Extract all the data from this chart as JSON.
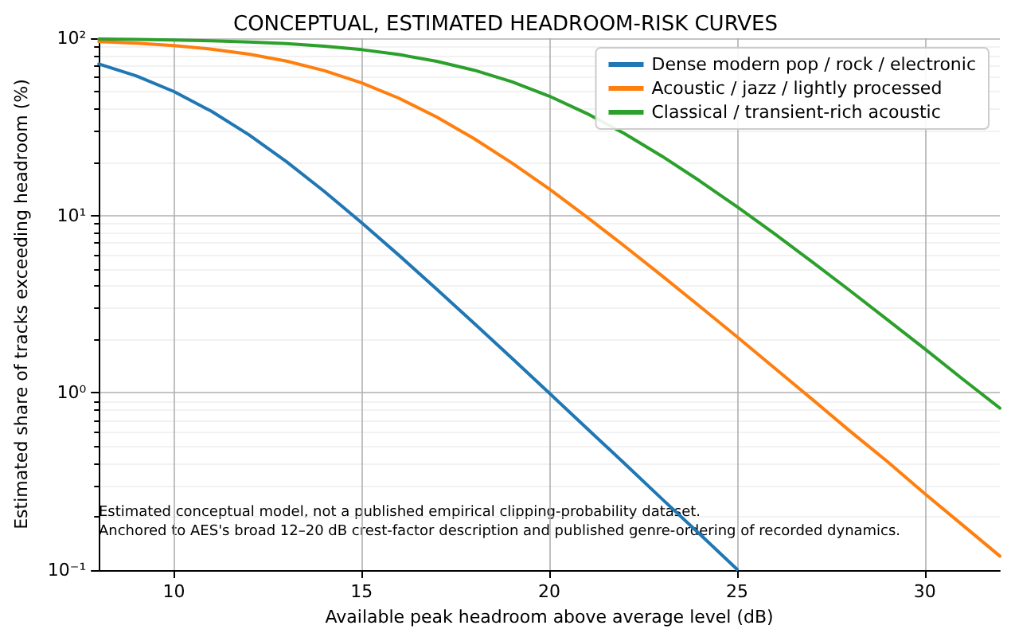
{
  "chart_data": {
    "type": "line",
    "title": "CONCEPTUAL, ESTIMATED HEADROOM-RISK CURVES",
    "xlabel": "Available peak headroom above average level (dB)",
    "ylabel": "Estimated share of tracks exceeding headroom (%)",
    "series": [
      {
        "name": "Dense modern pop / rock / electronic",
        "color": "#1f77b4",
        "x": [
          8,
          9,
          10,
          11,
          12,
          13,
          14,
          15,
          16,
          17,
          18,
          19,
          20,
          21,
          22,
          23,
          24,
          25
        ],
        "values": [
          71.5,
          61.3,
          50,
          38.7,
          28.5,
          20.1,
          13.7,
          9.11,
          5.95,
          3.84,
          2.46,
          1.57,
          0.995,
          0.63,
          0.4,
          0.252,
          0.16,
          0.101
        ]
      },
      {
        "name": "Acoustic / jazz / lightly processed",
        "color": "#ff7f0e",
        "x": [
          8,
          9,
          10,
          11,
          12,
          13,
          14,
          15,
          16,
          17,
          18,
          19,
          20,
          21,
          22,
          23,
          24,
          25,
          26,
          27,
          28,
          29,
          30,
          31,
          32
        ],
        "values": [
          95.7,
          93.7,
          90.8,
          86.8,
          81.3,
          74.3,
          65.7,
          56,
          45.8,
          35.9,
          27.1,
          19.8,
          14.1,
          9.81,
          6.73,
          4.57,
          3.08,
          2.07,
          1.38,
          0.92,
          0.61,
          0.41,
          0.27,
          0.18,
          0.12
        ]
      },
      {
        "name": "Classical / transient-rich acoustic",
        "color": "#2ca02c",
        "x": [
          8,
          9,
          10,
          11,
          12,
          13,
          14,
          15,
          16,
          17,
          18,
          19,
          20,
          21,
          22,
          23,
          24,
          25,
          26,
          27,
          28,
          29,
          30,
          31,
          32
        ],
        "values": [
          99,
          98.5,
          97.8,
          96.7,
          95.3,
          93.2,
          90.2,
          86.2,
          80.9,
          74.1,
          66,
          56.8,
          47.1,
          37.6,
          29,
          21.6,
          15.7,
          11.2,
          7.89,
          5.48,
          3.78,
          2.59,
          1.77,
          1.2,
          0.82
        ]
      }
    ],
    "xlim": [
      8,
      32
    ],
    "xticks": [
      10,
      15,
      20,
      25,
      30
    ],
    "ylim": [
      0.1,
      100
    ],
    "yticks": [
      {
        "value": 0.1,
        "label": "10⁻¹"
      },
      {
        "value": 1,
        "label": "10⁰"
      },
      {
        "value": 10,
        "label": "10¹"
      },
      {
        "value": 100,
        "label": "10²"
      }
    ],
    "log": "y",
    "grid": true,
    "legend": "top right",
    "marker": "none",
    "line_style": "solid",
    "annotations": [
      "Estimated conceptual model, not a published empirical clipping-probability dataset.",
      "Anchored to AES's broad 12–20 dB crest-factor description and published genre-ordering of recorded dynamics."
    ]
  }
}
